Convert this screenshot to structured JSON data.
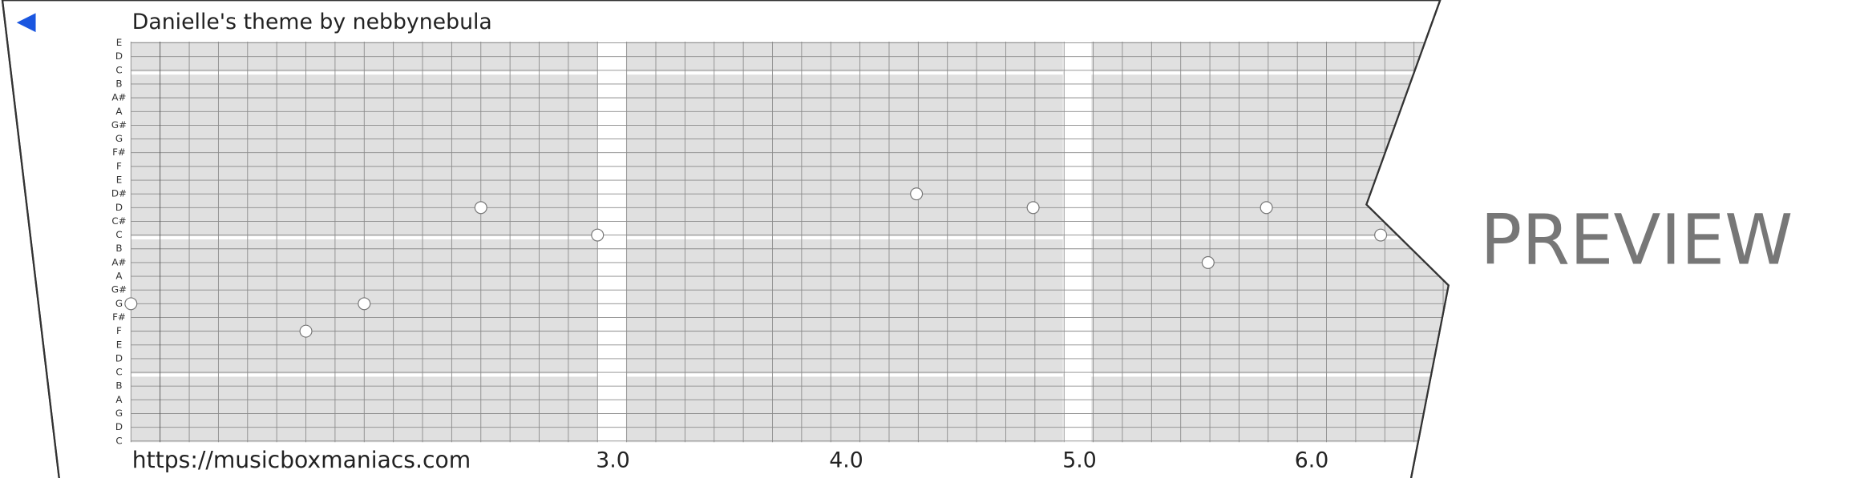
{
  "header": {
    "title": "Danielle's theme by nebbynebula"
  },
  "pitch_labels": [
    "E",
    "D",
    "C",
    "B",
    "A#",
    "A",
    "G#",
    "G",
    "F#",
    "F",
    "E",
    "D#",
    "D",
    "C#",
    "C",
    "B",
    "A#",
    "A",
    "G#",
    "G",
    "F#",
    "F",
    "E",
    "D",
    "C",
    "B",
    "A",
    "G",
    "D",
    "C"
  ],
  "footer": {
    "url": "https://musicboxmaniacs.com",
    "time_labels": [
      "3.0",
      "4.0",
      "5.0",
      "6.0"
    ]
  },
  "watermark": "PREVIEW"
}
